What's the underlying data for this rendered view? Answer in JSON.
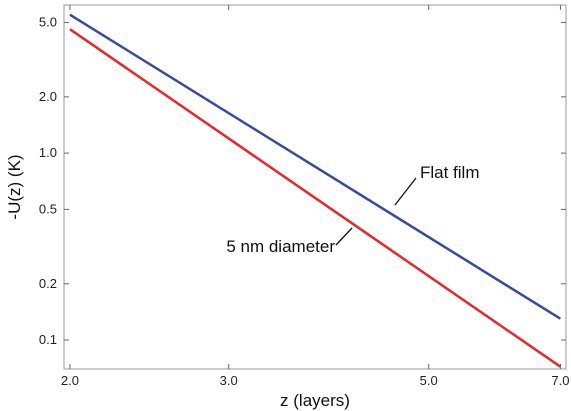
{
  "chart_data": {
    "type": "line",
    "xlabel": "z (layers)",
    "ylabel": "-U(z)  (K)",
    "x_scale": "log",
    "y_scale": "log",
    "xlim": [
      1.97,
      7.1
    ],
    "ylim": [
      0.07,
      6.2
    ],
    "x_ticks": [
      2.0,
      3.0,
      5.0,
      7.0
    ],
    "x_tick_labels": [
      "2.0",
      "3.0",
      "5.0",
      "7.0"
    ],
    "y_ticks": [
      0.1,
      0.2,
      0.5,
      1.0,
      2.0,
      5.0
    ],
    "y_tick_labels": [
      "0.1",
      "0.2",
      "0.5",
      "1.0",
      "2.0",
      "5.0"
    ],
    "grid": false,
    "series": [
      {
        "name": "Flat film",
        "color": "#3a4a9c",
        "x": [
          2.0,
          7.0
        ],
        "y": [
          5.5,
          0.13
        ]
      },
      {
        "name": "5 nm diameter",
        "color": "#e8262b",
        "x": [
          2.0,
          7.0
        ],
        "y": [
          4.6,
          0.072
        ]
      }
    ],
    "annotations": [
      {
        "text": "Flat film",
        "series": 0
      },
      {
        "text": "5 nm diameter",
        "series": 1
      }
    ]
  }
}
